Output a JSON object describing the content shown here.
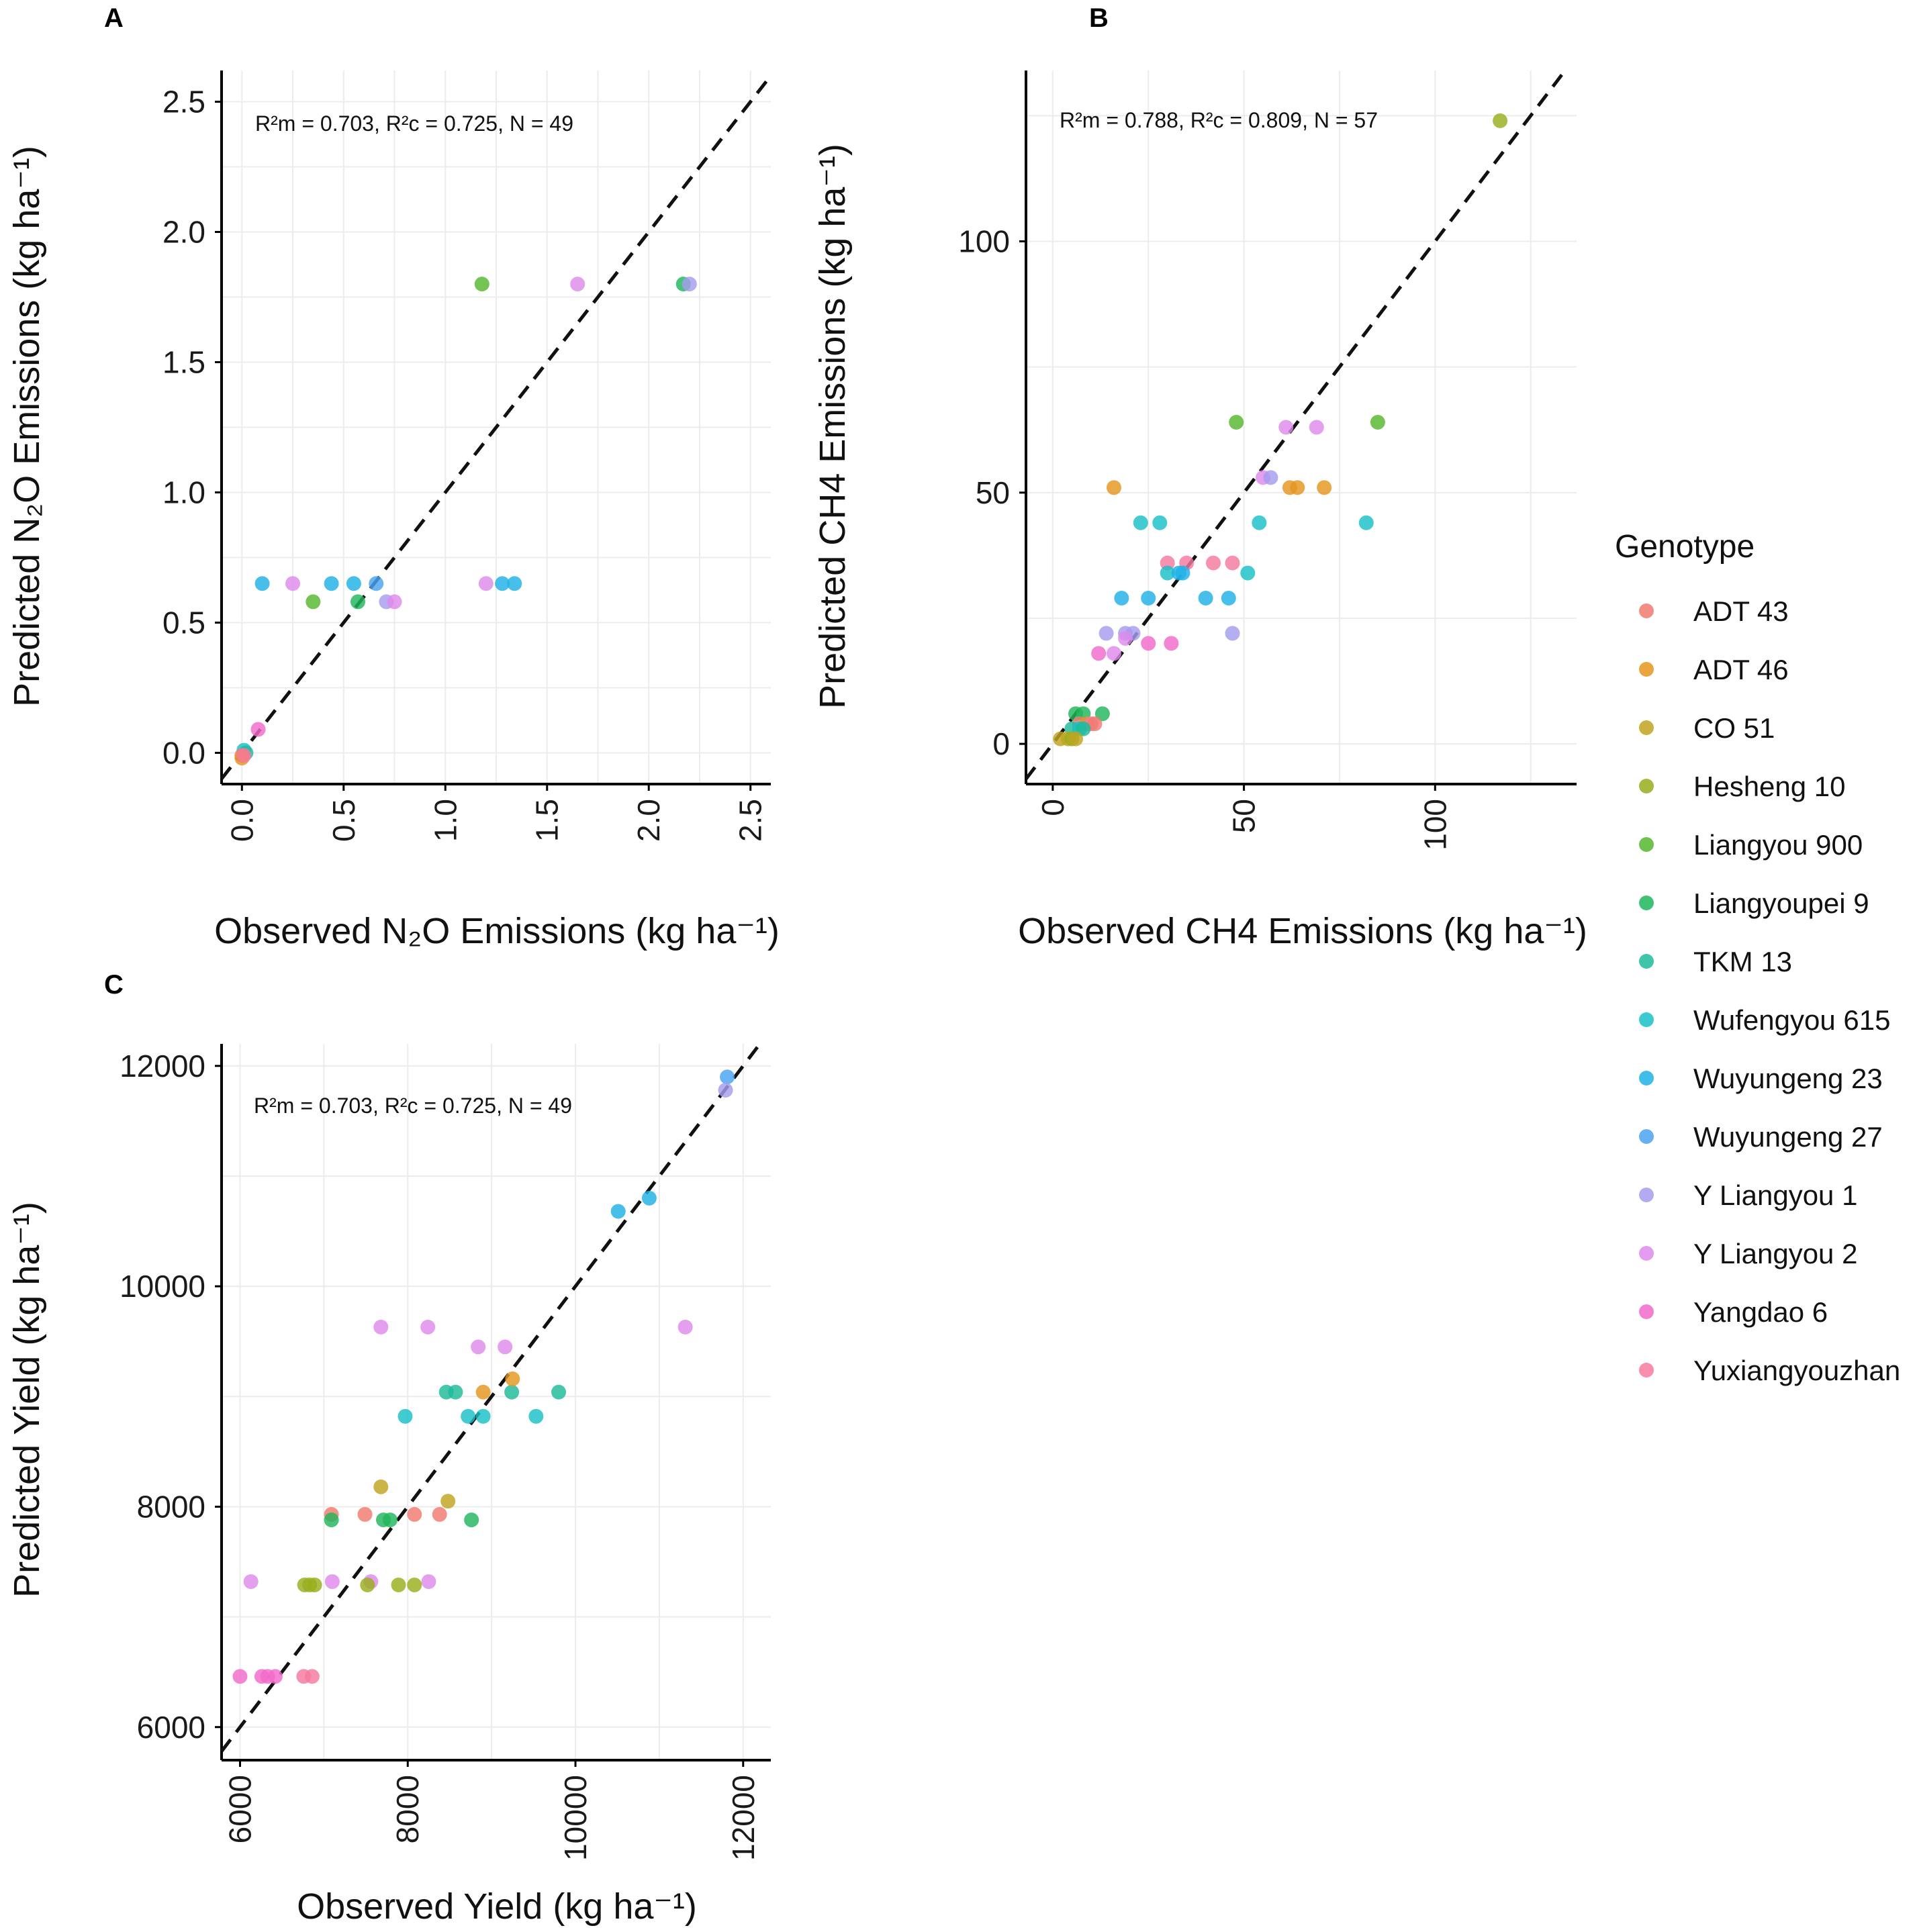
{
  "legend": {
    "title": "Genotype",
    "entries": [
      {
        "label": "ADT 43",
        "color": "#F07A6E"
      },
      {
        "label": "ADT 46",
        "color": "#E5961F"
      },
      {
        "label": "CO 51",
        "color": "#BFA521"
      },
      {
        "label": "Hesheng 10",
        "color": "#99AE1C"
      },
      {
        "label": "Liangyou 900",
        "color": "#55B72E"
      },
      {
        "label": "Liangyoupei 9",
        "color": "#20B65C"
      },
      {
        "label": "TKM 13",
        "color": "#1DBB9A"
      },
      {
        "label": "Wufengyou 615",
        "color": "#1AC0C8"
      },
      {
        "label": "Wuyungeng 23",
        "color": "#20B1E6"
      },
      {
        "label": "Wuyungeng 27",
        "color": "#4AA3F0"
      },
      {
        "label": "Y Liangyou 1",
        "color": "#A59CEE"
      },
      {
        "label": "Y Liangyou 2",
        "color": "#DE8BEC"
      },
      {
        "label": "Yangdao 6",
        "color": "#F26ACB"
      },
      {
        "label": "Yuxiangyouzhan",
        "color": "#F47A9E"
      }
    ]
  },
  "chart_data": [
    {
      "panel": "A",
      "type": "scatter",
      "annotation": "R²m = 0.703, R²c = 0.725, N = 49",
      "xlabel": "Observed N₂O Emissions (kg ha⁻¹)",
      "ylabel": "Predicted N₂O Emissions (kg ha⁻¹)",
      "xlim": [
        -0.1,
        2.6
      ],
      "ylim": [
        -0.12,
        2.62
      ],
      "xticks": [
        0.0,
        0.5,
        1.0,
        1.5,
        2.0,
        2.5
      ],
      "xtick_labels": [
        "0.0",
        "0.5",
        "1.0",
        "1.5",
        "2.0",
        "2.5"
      ],
      "yticks": [
        0.0,
        0.5,
        1.0,
        1.5,
        2.0,
        2.5
      ],
      "ytick_labels": [
        "0.0",
        "0.5",
        "1.0",
        "1.5",
        "2.0",
        "2.5"
      ],
      "points": [
        {
          "x": 1.18,
          "y": 1.8,
          "genotype": "Liangyou 900"
        },
        {
          "x": 1.65,
          "y": 1.8,
          "genotype": "Y Liangyou 2"
        },
        {
          "x": 2.17,
          "y": 1.8,
          "genotype": "Liangyoupei 9"
        },
        {
          "x": 2.2,
          "y": 1.8,
          "genotype": "Y Liangyou 1"
        },
        {
          "x": 0.1,
          "y": 0.65,
          "genotype": "Wuyungeng 23"
        },
        {
          "x": 0.25,
          "y": 0.65,
          "genotype": "Y Liangyou 2"
        },
        {
          "x": 0.44,
          "y": 0.65,
          "genotype": "Wuyungeng 23"
        },
        {
          "x": 0.55,
          "y": 0.65,
          "genotype": "Wuyungeng 23"
        },
        {
          "x": 0.66,
          "y": 0.65,
          "genotype": "Wuyungeng 27"
        },
        {
          "x": 0.35,
          "y": 0.58,
          "genotype": "Liangyou 900"
        },
        {
          "x": 0.57,
          "y": 0.58,
          "genotype": "Liangyoupei 9"
        },
        {
          "x": 0.71,
          "y": 0.58,
          "genotype": "Y Liangyou 1"
        },
        {
          "x": 0.75,
          "y": 0.58,
          "genotype": "Y Liangyou 2"
        },
        {
          "x": 1.2,
          "y": 0.65,
          "genotype": "Y Liangyou 2"
        },
        {
          "x": 1.28,
          "y": 0.65,
          "genotype": "Wuyungeng 23"
        },
        {
          "x": 1.34,
          "y": 0.65,
          "genotype": "Wuyungeng 23"
        },
        {
          "x": 0.08,
          "y": 0.09,
          "genotype": "Yangdao 6"
        },
        {
          "x": 0.01,
          "y": 0.01,
          "genotype": "Wufengyou 615"
        },
        {
          "x": 0.02,
          "y": 0.0,
          "genotype": "TKM 13"
        },
        {
          "x": 0.0,
          "y": -0.01,
          "genotype": "ADT 43"
        },
        {
          "x": 0.0,
          "y": -0.02,
          "genotype": "ADT 46"
        },
        {
          "x": 0.01,
          "y": -0.01,
          "genotype": "Yuxiangyouzhan"
        }
      ]
    },
    {
      "panel": "B",
      "type": "scatter",
      "annotation": "R²m = 0.788, R²c = 0.809, N = 57",
      "xlabel": "Observed CH4 Emissions (kg ha⁻¹)",
      "ylabel": "Predicted CH4 Emissions (kg ha⁻¹)",
      "xlim": [
        -7,
        137
      ],
      "ylim": [
        -8,
        134
      ],
      "xticks": [
        0,
        50,
        100
      ],
      "xtick_labels": [
        "0",
        "50",
        "100"
      ],
      "yticks": [
        0,
        50,
        100
      ],
      "ytick_labels": [
        "0",
        "50",
        "100"
      ],
      "points": [
        {
          "x": 117,
          "y": 124,
          "genotype": "Hesheng 10"
        },
        {
          "x": 48,
          "y": 64,
          "genotype": "Liangyou 900"
        },
        {
          "x": 85,
          "y": 64,
          "genotype": "Liangyou 900"
        },
        {
          "x": 61,
          "y": 63,
          "genotype": "Y Liangyou 2"
        },
        {
          "x": 69,
          "y": 63,
          "genotype": "Y Liangyou 2"
        },
        {
          "x": 55,
          "y": 53,
          "genotype": "Y Liangyou 2"
        },
        {
          "x": 57,
          "y": 53,
          "genotype": "Y Liangyou 1"
        },
        {
          "x": 16,
          "y": 51,
          "genotype": "ADT 46"
        },
        {
          "x": 62,
          "y": 51,
          "genotype": "ADT 46"
        },
        {
          "x": 64,
          "y": 51,
          "genotype": "ADT 46"
        },
        {
          "x": 71,
          "y": 51,
          "genotype": "ADT 46"
        },
        {
          "x": 23,
          "y": 44,
          "genotype": "Wufengyou 615"
        },
        {
          "x": 28,
          "y": 44,
          "genotype": "Wufengyou 615"
        },
        {
          "x": 54,
          "y": 44,
          "genotype": "Wufengyou 615"
        },
        {
          "x": 82,
          "y": 44,
          "genotype": "Wufengyou 615"
        },
        {
          "x": 30,
          "y": 36,
          "genotype": "Yuxiangyouzhan"
        },
        {
          "x": 35,
          "y": 36,
          "genotype": "Yuxiangyouzhan"
        },
        {
          "x": 42,
          "y": 36,
          "genotype": "Yuxiangyouzhan"
        },
        {
          "x": 47,
          "y": 36,
          "genotype": "Yuxiangyouzhan"
        },
        {
          "x": 30,
          "y": 34,
          "genotype": "Wufengyou 615"
        },
        {
          "x": 33,
          "y": 34,
          "genotype": "Wuyungeng 23"
        },
        {
          "x": 34,
          "y": 34,
          "genotype": "Wuyungeng 23"
        },
        {
          "x": 51,
          "y": 34,
          "genotype": "Wufengyou 615"
        },
        {
          "x": 18,
          "y": 29,
          "genotype": "Wuyungeng 23"
        },
        {
          "x": 25,
          "y": 29,
          "genotype": "Wuyungeng 23"
        },
        {
          "x": 40,
          "y": 29,
          "genotype": "Wuyungeng 23"
        },
        {
          "x": 46,
          "y": 29,
          "genotype": "Wuyungeng 23"
        },
        {
          "x": 14,
          "y": 22,
          "genotype": "Y Liangyou 1"
        },
        {
          "x": 19,
          "y": 22,
          "genotype": "Y Liangyou 1"
        },
        {
          "x": 21,
          "y": 22,
          "genotype": "Y Liangyou 1"
        },
        {
          "x": 47,
          "y": 22,
          "genotype": "Y Liangyou 1"
        },
        {
          "x": 19,
          "y": 21,
          "genotype": "Y Liangyou 2"
        },
        {
          "x": 25,
          "y": 20,
          "genotype": "Yangdao 6"
        },
        {
          "x": 31,
          "y": 20,
          "genotype": "Yangdao 6"
        },
        {
          "x": 12,
          "y": 18,
          "genotype": "Yangdao 6"
        },
        {
          "x": 16,
          "y": 18,
          "genotype": "Y Liangyou 2"
        },
        {
          "x": 6,
          "y": 6,
          "genotype": "Liangyoupei 9"
        },
        {
          "x": 8,
          "y": 6,
          "genotype": "Liangyoupei 9"
        },
        {
          "x": 13,
          "y": 6,
          "genotype": "Liangyoupei 9"
        },
        {
          "x": 7,
          "y": 4,
          "genotype": "ADT 43"
        },
        {
          "x": 9,
          "y": 4,
          "genotype": "ADT 46"
        },
        {
          "x": 10,
          "y": 4,
          "genotype": "Yuxiangyouzhan"
        },
        {
          "x": 11,
          "y": 4,
          "genotype": "ADT 43"
        },
        {
          "x": 5,
          "y": 3,
          "genotype": "TKM 13"
        },
        {
          "x": 7,
          "y": 3,
          "genotype": "Wufengyou 615"
        },
        {
          "x": 8,
          "y": 3,
          "genotype": "TKM 13"
        },
        {
          "x": 2,
          "y": 1,
          "genotype": "CO 51"
        },
        {
          "x": 4,
          "y": 1,
          "genotype": "CO 51"
        },
        {
          "x": 5,
          "y": 1,
          "genotype": "Hesheng 10"
        },
        {
          "x": 6,
          "y": 1,
          "genotype": "CO 51"
        }
      ]
    },
    {
      "panel": "C",
      "type": "scatter",
      "annotation": "R²m = 0.703, R²c = 0.725, N = 49",
      "xlabel": "Observed Yield (kg ha⁻¹)",
      "ylabel": "Predicted Yield (kg ha⁻¹)",
      "xlim": [
        5780,
        12330
      ],
      "ylim": [
        5700,
        12200
      ],
      "xticks": [
        6000,
        8000,
        10000,
        12000
      ],
      "xtick_labels": [
        "6000",
        "8000",
        "10000",
        "12000"
      ],
      "yticks": [
        6000,
        8000,
        10000,
        12000
      ],
      "ytick_labels": [
        "6000",
        "8000",
        "10000",
        "12000"
      ],
      "points": [
        {
          "x": 11810,
          "y": 11900,
          "genotype": "Wuyungeng 27"
        },
        {
          "x": 11790,
          "y": 11780,
          "genotype": "Y Liangyou 1"
        },
        {
          "x": 10510,
          "y": 10680,
          "genotype": "Wuyungeng 23"
        },
        {
          "x": 10880,
          "y": 10800,
          "genotype": "Wuyungeng 23"
        },
        {
          "x": 7680,
          "y": 9630,
          "genotype": "Y Liangyou 2"
        },
        {
          "x": 8240,
          "y": 9630,
          "genotype": "Y Liangyou 2"
        },
        {
          "x": 11310,
          "y": 9630,
          "genotype": "Y Liangyou 2"
        },
        {
          "x": 8840,
          "y": 9450,
          "genotype": "Y Liangyou 2"
        },
        {
          "x": 9160,
          "y": 9450,
          "genotype": "Y Liangyou 2"
        },
        {
          "x": 8460,
          "y": 9040,
          "genotype": "TKM 13"
        },
        {
          "x": 8570,
          "y": 9040,
          "genotype": "TKM 13"
        },
        {
          "x": 8900,
          "y": 9040,
          "genotype": "ADT 46"
        },
        {
          "x": 9240,
          "y": 9040,
          "genotype": "TKM 13"
        },
        {
          "x": 9800,
          "y": 9040,
          "genotype": "TKM 13"
        },
        {
          "x": 9250,
          "y": 9160,
          "genotype": "ADT 46"
        },
        {
          "x": 7970,
          "y": 8820,
          "genotype": "Wufengyou 615"
        },
        {
          "x": 8720,
          "y": 8820,
          "genotype": "Wufengyou 615"
        },
        {
          "x": 8900,
          "y": 8820,
          "genotype": "Wufengyou 615"
        },
        {
          "x": 9530,
          "y": 8820,
          "genotype": "Wufengyou 615"
        },
        {
          "x": 7680,
          "y": 8180,
          "genotype": "CO 51"
        },
        {
          "x": 8480,
          "y": 8050,
          "genotype": "CO 51"
        },
        {
          "x": 7090,
          "y": 7930,
          "genotype": "ADT 43"
        },
        {
          "x": 7490,
          "y": 7930,
          "genotype": "ADT 43"
        },
        {
          "x": 8080,
          "y": 7930,
          "genotype": "ADT 43"
        },
        {
          "x": 8380,
          "y": 7930,
          "genotype": "ADT 43"
        },
        {
          "x": 7090,
          "y": 7880,
          "genotype": "Liangyoupei 9"
        },
        {
          "x": 7710,
          "y": 7880,
          "genotype": "Liangyoupei 9"
        },
        {
          "x": 7790,
          "y": 7880,
          "genotype": "Liangyoupei 9"
        },
        {
          "x": 8760,
          "y": 7880,
          "genotype": "Liangyoupei 9"
        },
        {
          "x": 6130,
          "y": 7320,
          "genotype": "Y Liangyou 2"
        },
        {
          "x": 7100,
          "y": 7320,
          "genotype": "Y Liangyou 2"
        },
        {
          "x": 7560,
          "y": 7320,
          "genotype": "Y Liangyou 2"
        },
        {
          "x": 8250,
          "y": 7320,
          "genotype": "Y Liangyou 2"
        },
        {
          "x": 6770,
          "y": 7290,
          "genotype": "Hesheng 10"
        },
        {
          "x": 6830,
          "y": 7290,
          "genotype": "Hesheng 10"
        },
        {
          "x": 6890,
          "y": 7290,
          "genotype": "Hesheng 10"
        },
        {
          "x": 7520,
          "y": 7290,
          "genotype": "Hesheng 10"
        },
        {
          "x": 7890,
          "y": 7290,
          "genotype": "Hesheng 10"
        },
        {
          "x": 8080,
          "y": 7290,
          "genotype": "Hesheng 10"
        },
        {
          "x": 6000,
          "y": 6460,
          "genotype": "Yangdao 6"
        },
        {
          "x": 6260,
          "y": 6460,
          "genotype": "Yangdao 6"
        },
        {
          "x": 6330,
          "y": 6460,
          "genotype": "Yangdao 6"
        },
        {
          "x": 6420,
          "y": 6460,
          "genotype": "Yangdao 6"
        },
        {
          "x": 6760,
          "y": 6460,
          "genotype": "Yuxiangyouzhan"
        },
        {
          "x": 6860,
          "y": 6460,
          "genotype": "Yuxiangyouzhan"
        }
      ]
    }
  ]
}
